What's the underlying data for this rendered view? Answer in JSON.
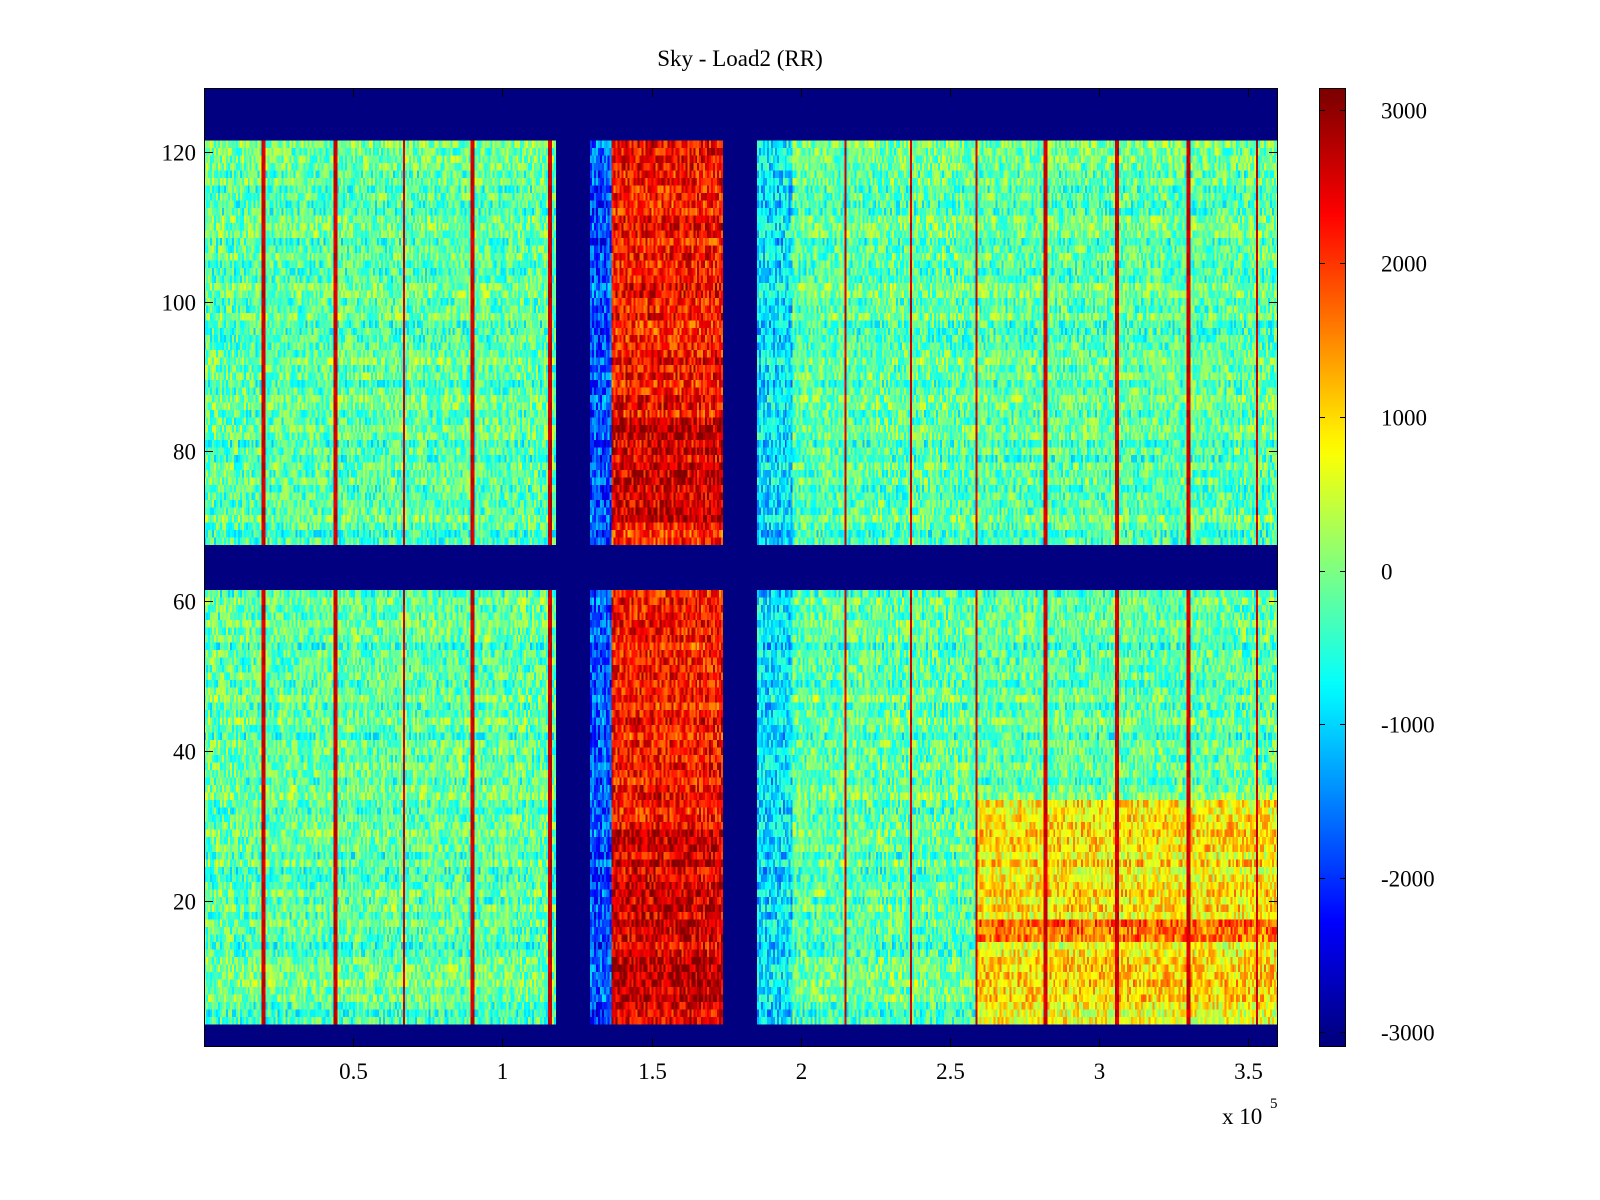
{
  "chart_data": {
    "type": "heatmap",
    "title": "Sky - Load2 (RR)",
    "xlabel": "",
    "ylabel": "",
    "x_multiplier_label": "x 10",
    "x_multiplier_exponent": "5",
    "xlim": [
      0,
      3.6
    ],
    "ylim": [
      0.5,
      128.5
    ],
    "x_ticks": [
      0.5,
      1,
      1.5,
      2,
      2.5,
      3,
      3.5
    ],
    "x_tick_labels": [
      "0.5",
      "1",
      "1.5",
      "2",
      "2.5",
      "3",
      "3.5"
    ],
    "y_ticks": [
      20,
      40,
      60,
      80,
      100,
      120
    ],
    "y_tick_labels": [
      "20",
      "40",
      "60",
      "80",
      "100",
      "120"
    ],
    "colormap": "jet",
    "clim": [
      -3100,
      3140
    ],
    "colorbar": {
      "ticks": [
        3000,
        2000,
        1000,
        0,
        -1000,
        -2000,
        -3000
      ],
      "tick_labels": [
        "3000",
        "2000",
        "1000",
        "0",
        "-1000",
        "-2000",
        "-3000"
      ],
      "location": "right"
    },
    "grid": false,
    "rows": 128,
    "columns": 540,
    "regions": {
      "masked_value": -3100,
      "masked_rows": [
        [
          121.5,
          128.5
        ],
        [
          61.5,
          67.5
        ],
        [
          0.5,
          3.5
        ]
      ],
      "masked_columns": [
        [
          1.18,
          1.29
        ],
        [
          1.74,
          1.85
        ]
      ],
      "low_band": {
        "x": [
          1.29,
          1.37
        ],
        "mean": -1800
      },
      "low_band_right": {
        "x": [
          1.85,
          1.97
        ],
        "mean": -900
      },
      "high_band": {
        "x": [
          1.37,
          1.74
        ],
        "mean": 2200
      },
      "background_mean": -200,
      "warm_patch": {
        "x": [
          2.59,
          3.6
        ],
        "y": [
          3.5,
          33.5
        ],
        "mean": 900
      },
      "hot_stripes_x": [
        0.2,
        0.44,
        0.67,
        0.9,
        1.16,
        2.15,
        2.37,
        2.59,
        2.82,
        3.06,
        3.3,
        3.53
      ],
      "hot_stripe_value": 2600,
      "noise_amplitude": 700
    },
    "colors": {
      "masked": "#00008f",
      "axis": "#000000",
      "background": "#ffffff"
    }
  }
}
